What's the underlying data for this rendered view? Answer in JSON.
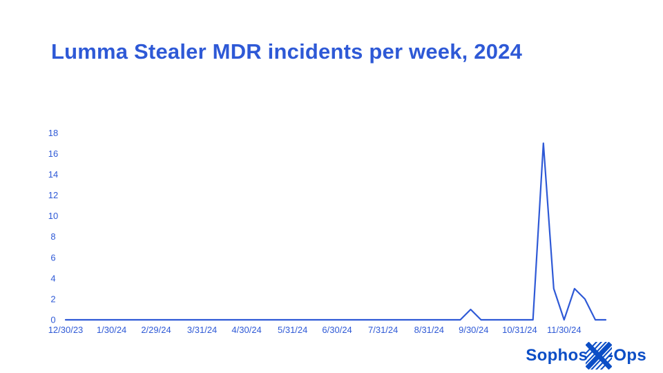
{
  "title": "Lumma Stealer MDR incidents per week, 2024",
  "colors": {
    "accent_blue": "#2e59d6",
    "logo_blue": "#0c4ec6",
    "background": "#ffffff"
  },
  "logo": {
    "sophos": "Sophos",
    "ops": "-Ops",
    "x_icon": "xops-x-icon"
  },
  "chart_data": {
    "type": "line",
    "title": "Lumma Stealer MDR incidents per week, 2024",
    "xlabel": "",
    "ylabel": "",
    "x": [
      "12/30/23",
      "1/6/24",
      "1/13/24",
      "1/20/24",
      "1/27/24",
      "2/3/24",
      "2/10/24",
      "2/17/24",
      "2/24/24",
      "3/2/24",
      "3/9/24",
      "3/16/24",
      "3/23/24",
      "3/30/24",
      "4/6/24",
      "4/13/24",
      "4/20/24",
      "4/27/24",
      "5/4/24",
      "5/11/24",
      "5/18/24",
      "5/25/24",
      "6/1/24",
      "6/8/24",
      "6/15/24",
      "6/22/24",
      "6/29/24",
      "7/6/24",
      "7/13/24",
      "7/20/24",
      "7/27/24",
      "8/3/24",
      "8/10/24",
      "8/17/24",
      "8/24/24",
      "8/31/24",
      "9/7/24",
      "9/14/24",
      "9/21/24",
      "9/28/24",
      "10/5/24",
      "10/12/24",
      "10/19/24",
      "10/26/24",
      "11/2/24",
      "11/9/24",
      "11/16/24",
      "11/23/24",
      "11/30/24",
      "12/7/24",
      "12/14/24",
      "12/21/24",
      "12/28/24"
    ],
    "values": [
      0,
      0,
      0,
      0,
      0,
      0,
      0,
      0,
      0,
      0,
      0,
      0,
      0,
      0,
      0,
      0,
      0,
      0,
      0,
      0,
      0,
      0,
      0,
      0,
      0,
      0,
      0,
      0,
      0,
      0,
      0,
      0,
      0,
      0,
      0,
      0,
      0,
      0,
      0,
      1,
      0,
      0,
      0,
      0,
      0,
      0,
      17,
      3,
      0,
      3,
      2,
      0,
      0
    ],
    "x_tick_labels": [
      "12/30/23",
      "1/30/24",
      "2/29/24",
      "3/31/24",
      "4/30/24",
      "5/31/24",
      "6/30/24",
      "7/31/24",
      "8/31/24",
      "9/30/24",
      "10/31/24",
      "11/30/24"
    ],
    "y_ticks": [
      0,
      2,
      4,
      6,
      8,
      10,
      12,
      14,
      16,
      18
    ],
    "ylim": [
      0,
      18
    ],
    "grid": false,
    "legend_position": "none",
    "line_color": "#2e59d6"
  }
}
